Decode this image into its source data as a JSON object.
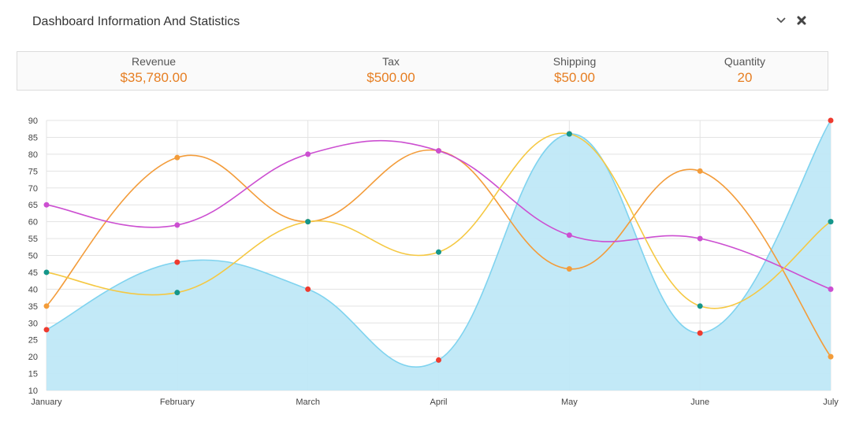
{
  "header": {
    "title": "Dashboard Information And Statistics",
    "collapse_icon": "chevron-down-icon",
    "close_icon": "close-icon"
  },
  "stats": [
    {
      "label": "Revenue",
      "value": "$35,780.00"
    },
    {
      "label": "Tax",
      "value": "$500.00"
    },
    {
      "label": "Shipping",
      "value": "$50.00"
    },
    {
      "label": "Quantity",
      "value": "20"
    }
  ],
  "colors": {
    "accent": "#e67e22",
    "area_fill": "#bfe8f7",
    "area_line": "#7fd3ef",
    "orange": "#f39c3a",
    "magenta": "#cc4fd1",
    "yellow": "#f5c842",
    "grid": "#e3e3e3"
  },
  "chart_data": {
    "type": "line",
    "categories": [
      "January",
      "February",
      "March",
      "April",
      "May",
      "June",
      "July"
    ],
    "ylim": [
      10,
      90
    ],
    "yticks": [
      10,
      15,
      20,
      25,
      30,
      35,
      40,
      45,
      50,
      55,
      60,
      65,
      70,
      75,
      80,
      85,
      90
    ],
    "grid": true,
    "series": [
      {
        "values": [
          28,
          48,
          40,
          19,
          86,
          27,
          90
        ],
        "style": "area",
        "color": "#7fd3ef",
        "fill": "#bfe8f7",
        "point_color": "#ee3b2f"
      },
      {
        "values": [
          35,
          79,
          60,
          81,
          46,
          75,
          20
        ],
        "style": "line",
        "color": "#f39c3a",
        "point_color": "#f39c3a"
      },
      {
        "values": [
          65,
          59,
          80,
          81,
          56,
          55,
          40
        ],
        "style": "line",
        "color": "#cc4fd1",
        "point_color": "#cc4fd1"
      },
      {
        "values": [
          45,
          39,
          60,
          51,
          86,
          35,
          60
        ],
        "style": "line",
        "color": "#f5c842",
        "point_color": "#15968a"
      }
    ]
  }
}
